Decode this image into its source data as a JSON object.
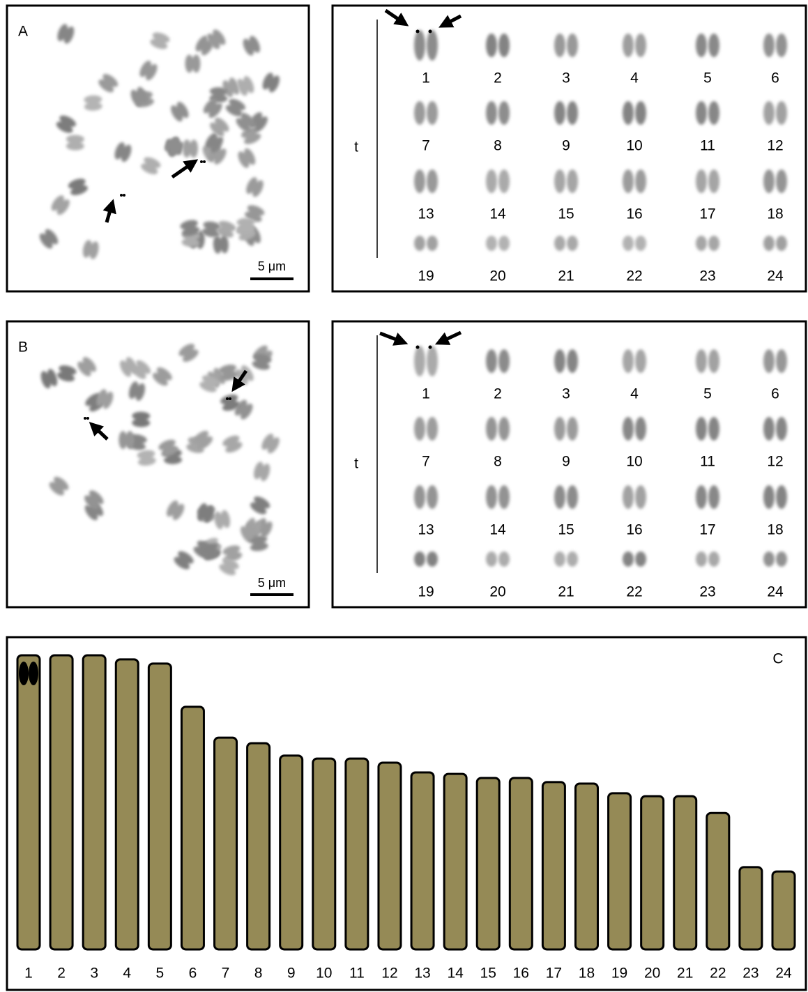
{
  "panels": [
    {
      "label": "A",
      "scale_bar": "5 μm",
      "karyotype": {
        "group": "t",
        "chromosomes": [
          "1",
          "2",
          "3",
          "4",
          "5",
          "6",
          "7",
          "8",
          "9",
          "10",
          "11",
          "12",
          "13",
          "14",
          "15",
          "16",
          "17",
          "18",
          "19",
          "20",
          "21",
          "22",
          "23",
          "24"
        ]
      }
    },
    {
      "label": "B",
      "scale_bar": "5 μm",
      "karyotype": {
        "group": "t",
        "chromosomes": [
          "1",
          "2",
          "3",
          "4",
          "5",
          "6",
          "7",
          "8",
          "9",
          "10",
          "11",
          "12",
          "13",
          "14",
          "15",
          "16",
          "17",
          "18",
          "19",
          "20",
          "21",
          "22",
          "23",
          "24"
        ]
      }
    }
  ],
  "chart_data": {
    "type": "bar",
    "label": "C",
    "categories": [
      "1",
      "2",
      "3",
      "4",
      "5",
      "6",
      "7",
      "8",
      "9",
      "10",
      "11",
      "12",
      "13",
      "14",
      "15",
      "16",
      "17",
      "18",
      "19",
      "20",
      "21",
      "22",
      "23",
      "24"
    ],
    "values": [
      100,
      100,
      100,
      98.6,
      97.2,
      82.5,
      72,
      70.1,
      65.9,
      64.9,
      64.9,
      63.5,
      60.2,
      59.7,
      58.3,
      58.3,
      56.9,
      56.4,
      53.1,
      52.1,
      52.1,
      46.4,
      28,
      26.5
    ],
    "color": "#958a56"
  }
}
